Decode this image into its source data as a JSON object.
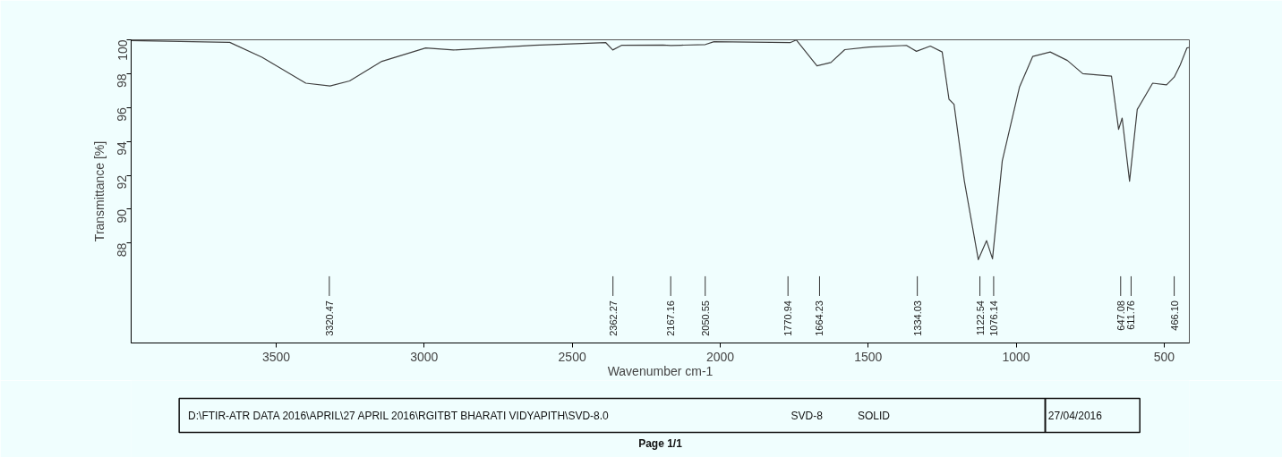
{
  "chart_data": {
    "type": "line",
    "xlabel": "Wavenumber cm-1",
    "ylabel": "Transmittance [%]",
    "x": [
      3990,
      3657,
      3548,
      3400,
      3318,
      3252,
      3143,
      2995,
      2901,
      2629,
      2387,
      2363,
      2332,
      2193,
      2167,
      2133,
      2050,
      2021,
      1764,
      1743,
      1673,
      1626,
      1579,
      1498,
      1371,
      1337,
      1290,
      1250,
      1227,
      1210,
      1175,
      1128,
      1100,
      1080,
      1047,
      989,
      944,
      885,
      827,
      775,
      678,
      654,
      642,
      617,
      591,
      539,
      492,
      466,
      446,
      423,
      415
    ],
    "series": [
      {
        "color": "#404040",
        "values": [
          99.95,
          99.85,
          98.97,
          97.44,
          97.27,
          97.57,
          98.73,
          99.52,
          99.4,
          99.68,
          99.84,
          99.4,
          99.68,
          99.69,
          99.66,
          99.68,
          99.72,
          99.89,
          99.83,
          99.99,
          98.46,
          98.66,
          99.42,
          99.57,
          99.67,
          99.32,
          99.63,
          99.28,
          96.49,
          96.19,
          91.65,
          87.02,
          88.14,
          87.07,
          92.85,
          97.2,
          99.02,
          99.28,
          98.78,
          98.0,
          97.85,
          94.71,
          95.38,
          91.65,
          95.89,
          97.44,
          97.34,
          97.8,
          98.51,
          99.52,
          99.55
        ]
      }
    ],
    "xlim": [
      3990,
      415
    ],
    "ylim": [
      82.1,
      100
    ],
    "xticks": [
      3500,
      3000,
      2500,
      2000,
      1500,
      1000,
      500
    ],
    "yticks": [
      88,
      90,
      92,
      94,
      96,
      98,
      100
    ],
    "annotations": [
      {
        "text": "3320.47",
        "x": 3320.47
      },
      {
        "text": "2362.27",
        "x": 2362.27
      },
      {
        "text": "2167.16",
        "x": 2167.16
      },
      {
        "text": "2050.55",
        "x": 2050.55
      },
      {
        "text": "1770.94",
        "x": 1770.94
      },
      {
        "text": "1664.23",
        "x": 1664.23
      },
      {
        "text": "1334.03",
        "x": 1334.03
      },
      {
        "text": "1122.54",
        "x": 1122.54
      },
      {
        "text": "1076.14",
        "x": 1076.14
      },
      {
        "text": "647.08",
        "x": 647.08
      },
      {
        "text": "611.76",
        "x": 611.76
      },
      {
        "text": "466.10",
        "x": 466.1
      },
      "D:\\FTIR-ATR DATA 2016\\APRIL\\27 APRIL 2016\\RGITBT BHARATI VIDYAPITH\\SVD-8.0",
      "SVD-8",
      "SOLID",
      "27/04/2016",
      "Page 1/1"
    ]
  }
}
